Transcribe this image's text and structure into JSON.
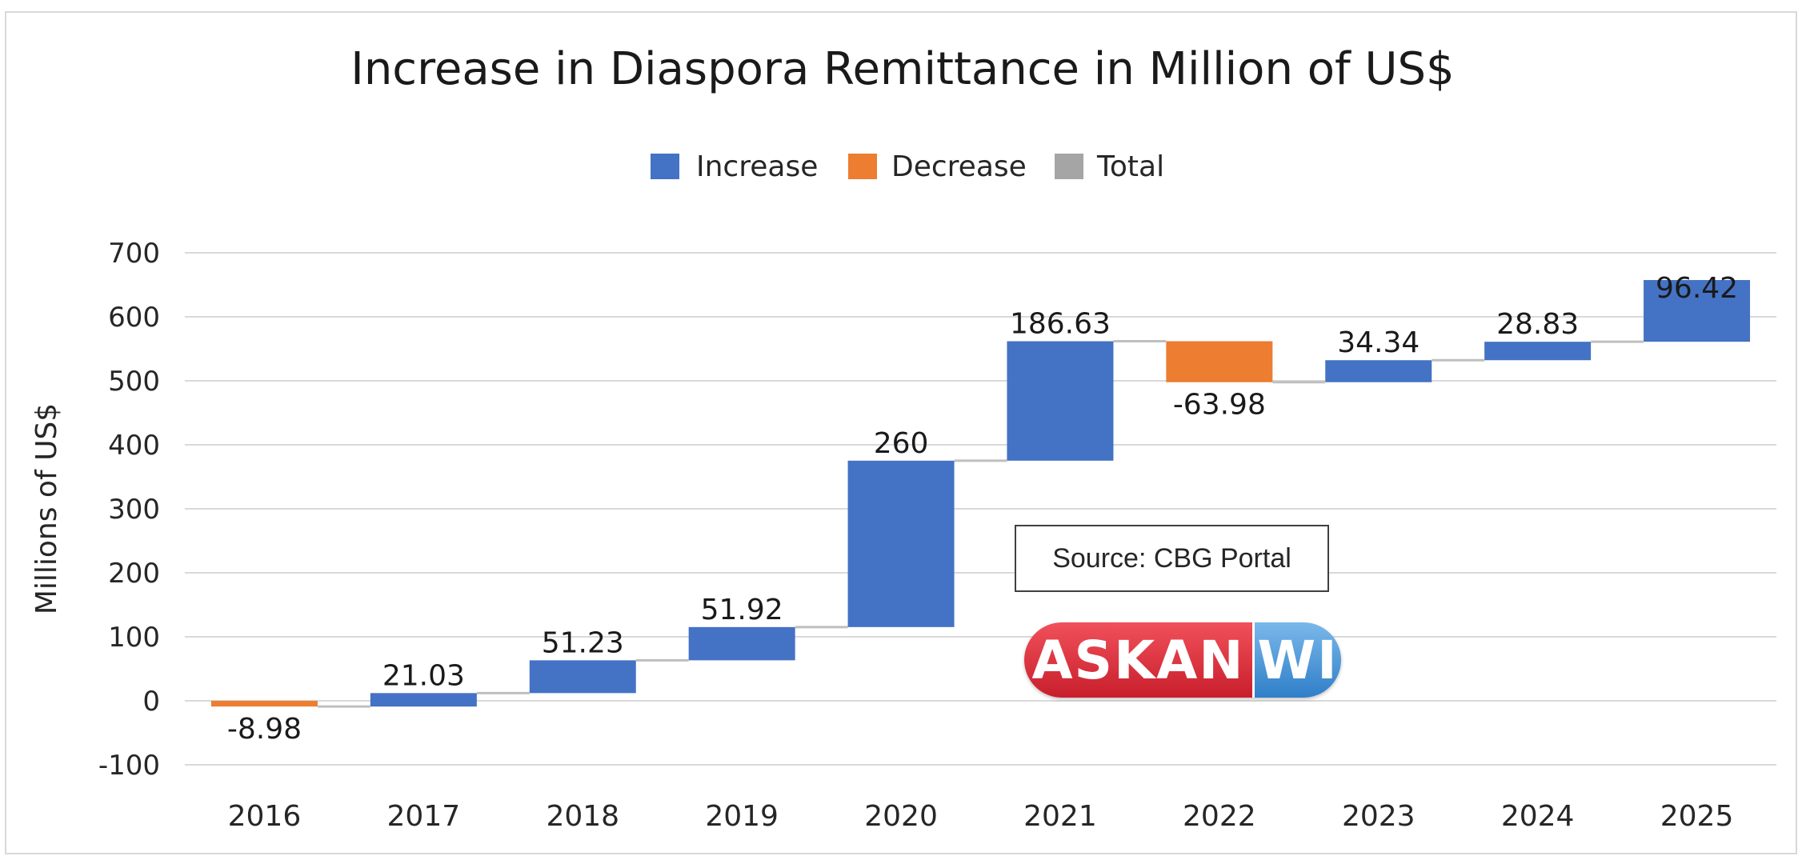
{
  "chart_data": {
    "type": "waterfall",
    "title": "Increase in Diaspora Remittance in Million of US$",
    "ylabel": "Millions of US$",
    "xlabel": "",
    "ylim": [
      -100,
      700
    ],
    "yticks": [
      -100,
      0,
      100,
      200,
      300,
      400,
      500,
      600,
      700
    ],
    "grid": true,
    "legend_position": "top-center",
    "legend": [
      {
        "name": "Increase",
        "color": "#4472c4"
      },
      {
        "name": "Decrease",
        "color": "#ed7d31"
      },
      {
        "name": "Total",
        "color": "#a5a5a5"
      }
    ],
    "categories": [
      "2016",
      "2017",
      "2018",
      "2019",
      "2020",
      "2021",
      "2022",
      "2023",
      "2024",
      "2025"
    ],
    "values": [
      -8.98,
      21.03,
      51.23,
      51.92,
      260,
      186.63,
      -63.98,
      34.34,
      28.83,
      96.42
    ],
    "labels": [
      "-8.98",
      "21.03",
      "51.23",
      "51.92",
      "260",
      "186.63",
      "-63.98",
      "34.34",
      "28.83",
      "96.42"
    ]
  },
  "annotation": {
    "source": "Source: CBG Portal"
  },
  "logo": {
    "left": "ASKAN",
    "right": "WI"
  }
}
